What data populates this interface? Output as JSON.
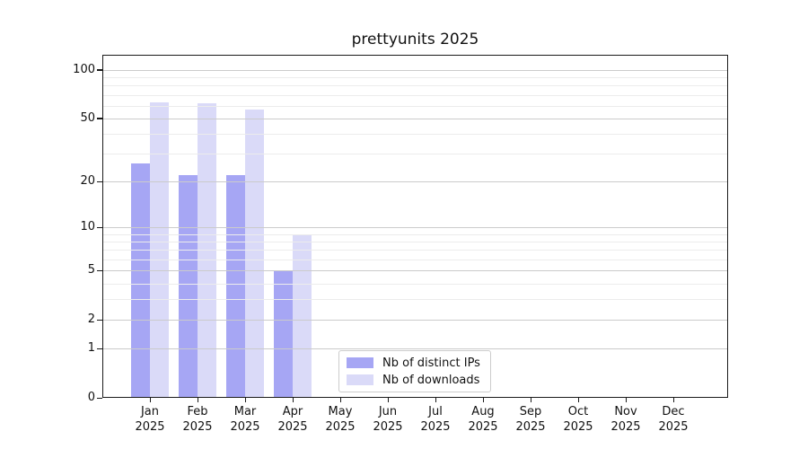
{
  "chart_data": {
    "type": "bar",
    "title": "prettyunits 2025",
    "categories": [
      "Jan 2025",
      "Feb 2025",
      "Mar 2025",
      "Apr 2025",
      "May 2025",
      "Jun 2025",
      "Jul 2025",
      "Aug 2025",
      "Sep 2025",
      "Oct 2025",
      "Nov 2025",
      "Dec 2025"
    ],
    "series": [
      {
        "name": "Nb of distinct IPs",
        "color": "#a6a6f4",
        "values": [
          26,
          22,
          22,
          5,
          0,
          0,
          0,
          0,
          0,
          0,
          0,
          0
        ]
      },
      {
        "name": "Nb of downloads",
        "color": "#dadaf8",
        "values": [
          63,
          62,
          57,
          9,
          0,
          0,
          0,
          0,
          0,
          0,
          0,
          0
        ]
      }
    ],
    "xlabel": "",
    "ylabel": "",
    "y_scale": "log1p",
    "ylim": [
      0,
      124
    ],
    "y_major_ticks": [
      0,
      1,
      2,
      5,
      10,
      20,
      50,
      100
    ],
    "y_minor_gridlines": [
      3,
      4,
      6,
      7,
      8,
      9,
      30,
      40,
      60,
      70,
      80,
      90
    ],
    "grid": "horizontal, drawn over bars",
    "legend_position": "lower center, inside plot"
  },
  "colors": {
    "distinct_ips_bar": "#a6a6f4",
    "downloads_bar": "#dadaf8",
    "grid_major": "#cbcbcb",
    "grid_minor": "#ececec",
    "frame": "#1a1a1a",
    "legend_border": "#cccccc",
    "background": "#ffffff"
  }
}
